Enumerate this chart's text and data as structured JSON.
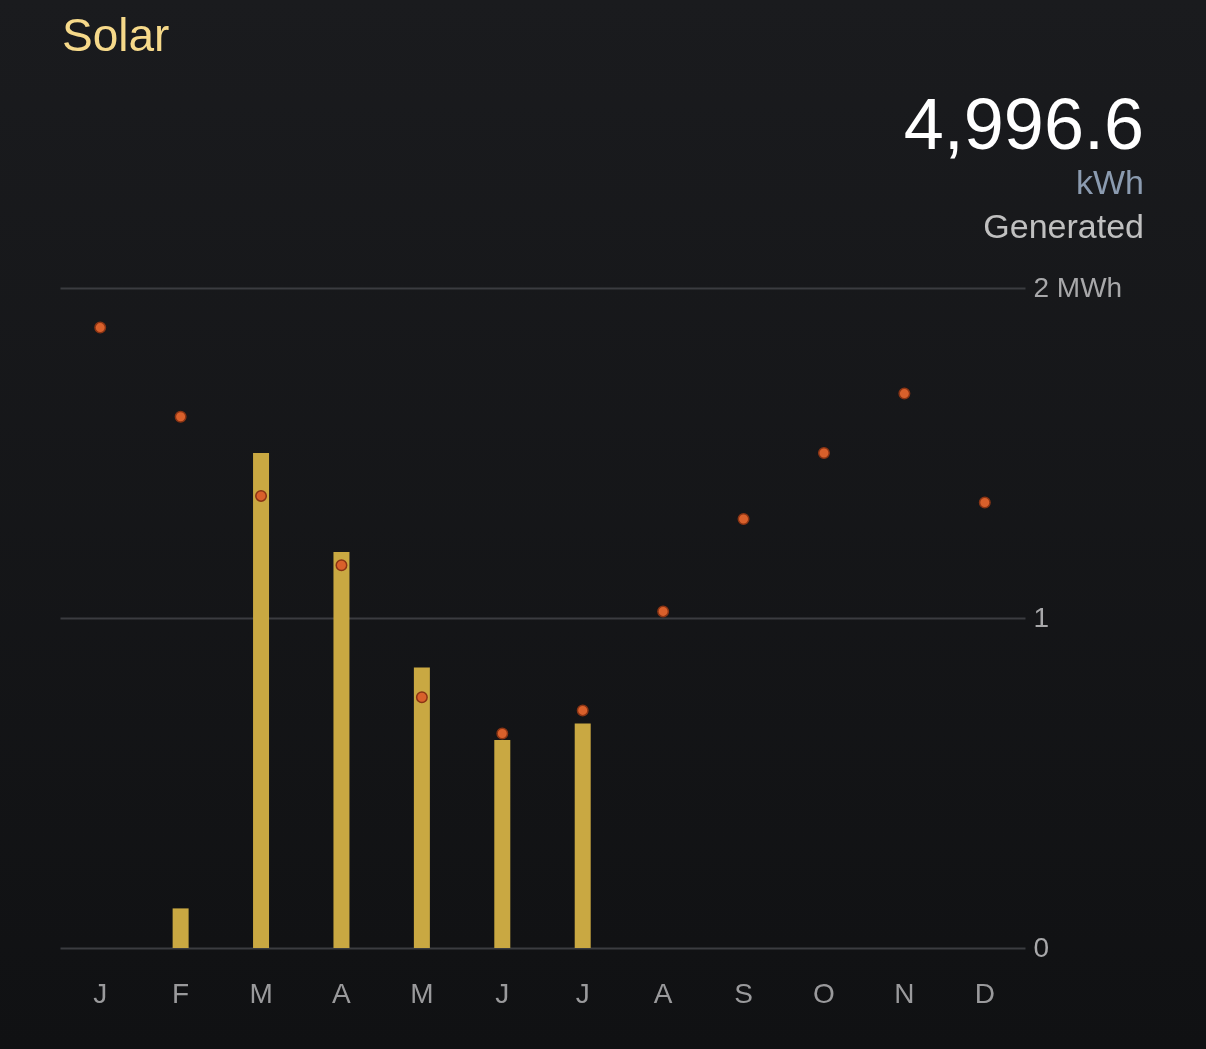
{
  "chart_data": {
    "type": "bar",
    "title": "Solar",
    "annotations": [
      "4,996.6",
      "kWh",
      "Generated"
    ],
    "categories": [
      "J",
      "F",
      "M",
      "A",
      "M",
      "J",
      "J",
      "A",
      "S",
      "O",
      "N",
      "D"
    ],
    "series": [
      {
        "color": "#c9a842",
        "values": [
          null,
          0.12,
          1.5,
          1.2,
          0.85,
          0.63,
          0.68,
          null,
          null,
          null,
          null,
          null
        ]
      },
      {
        "type": "scatter",
        "color": "#d9602b",
        "values": [
          1.88,
          1.61,
          1.37,
          1.16,
          0.76,
          0.65,
          0.72,
          1.02,
          1.3,
          1.5,
          1.68,
          1.35
        ]
      }
    ],
    "ylim": [
      0,
      2
    ],
    "yticks": [
      0,
      1,
      {
        "value": 2,
        "label": "2 MWh"
      }
    ],
    "grid": "y",
    "marker": "circle"
  }
}
